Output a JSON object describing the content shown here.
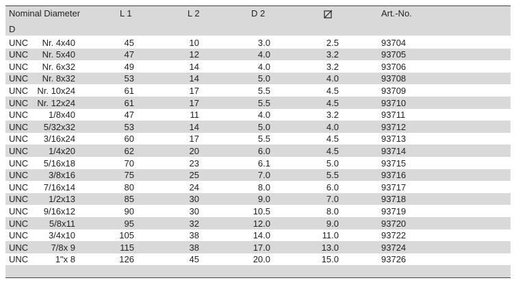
{
  "table": {
    "header": {
      "nominal_diameter": "Nominal Diameter",
      "d": "D",
      "l1": "L 1",
      "l2": "L 2",
      "d2": "D 2",
      "art_no": "Art.-No."
    },
    "rows": [
      [
        "UNC",
        "Nr. 4x40",
        "45",
        "10",
        "3.0",
        "2.5",
        "93704"
      ],
      [
        "UNC",
        "Nr. 5x40",
        "47",
        "12",
        "4.0",
        "3.2",
        "93705"
      ],
      [
        "UNC",
        "Nr. 6x32",
        "49",
        "14",
        "4.0",
        "3.2",
        "93706"
      ],
      [
        "UNC",
        "Nr. 8x32",
        "53",
        "14",
        "5.0",
        "4.0",
        "93708"
      ],
      [
        "UNC",
        "Nr. 10x24",
        "61",
        "17",
        "5.5",
        "4.5",
        "93709"
      ],
      [
        "UNC",
        "Nr. 12x24",
        "61",
        "17",
        "5.5",
        "4.5",
        "93710"
      ],
      [
        "UNC",
        "1/8x40",
        "47",
        "11",
        "4.0",
        "3.2",
        "93711"
      ],
      [
        "UNC",
        "5/32x32",
        "53",
        "14",
        "5.0",
        "4.0",
        "93712"
      ],
      [
        "UNC",
        "3/16x24",
        "60",
        "17",
        "5.5",
        "4.5",
        "93713"
      ],
      [
        "UNC",
        "1/4x20",
        "62",
        "20",
        "6.0",
        "4.5",
        "93714"
      ],
      [
        "UNC",
        "5/16x18",
        "70",
        "23",
        "6.1",
        "5.0",
        "93715"
      ],
      [
        "UNC",
        "3/8x16",
        "75",
        "25",
        "7.0",
        "5.5",
        "93716"
      ],
      [
        "UNC",
        "7/16x14",
        "80",
        "24",
        "8.0",
        "6.0",
        "93717"
      ],
      [
        "UNC",
        "1/2x13",
        "85",
        "30",
        "9.0",
        "7.0",
        "93718"
      ],
      [
        "UNC",
        "9/16x12",
        "90",
        "30",
        "10.5",
        "8.0",
        "93719"
      ],
      [
        "UNC",
        "5/8x11",
        "95",
        "32",
        "12.0",
        "9.0",
        "93720"
      ],
      [
        "UNC",
        "3/4x10",
        "105",
        "38",
        "14.0",
        "11.0",
        "93722"
      ],
      [
        "UNC",
        "7/8x 9",
        "115",
        "38",
        "17.0",
        "13.0",
        "93724"
      ],
      [
        "UNC",
        "1\"x 8",
        "126",
        "45",
        "20.0",
        "15.0",
        "93726"
      ]
    ]
  }
}
